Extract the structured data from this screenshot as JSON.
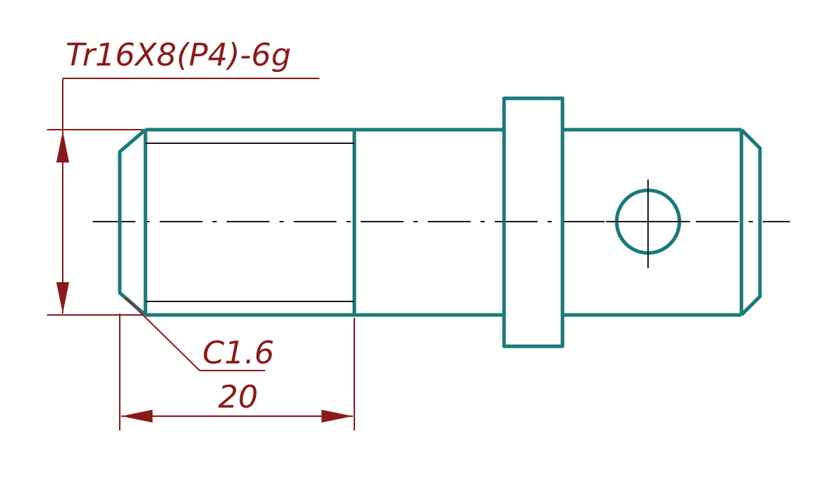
{
  "annotations": {
    "thread_spec": "Tr16X8(P4)-6g",
    "chamfer": "C1.6",
    "length": "20"
  },
  "colors": {
    "part_outline": "#1a7a78",
    "dimension": "#8b1a1a",
    "centerline": "#1a1a1a"
  }
}
